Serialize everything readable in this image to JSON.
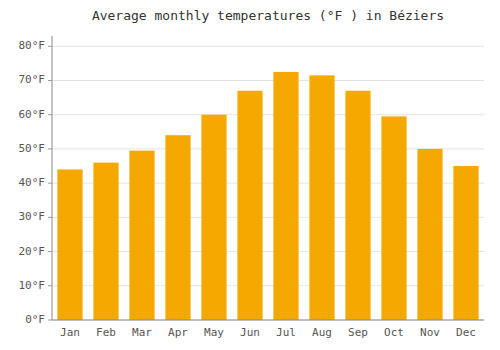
{
  "chart_data": {
    "type": "bar",
    "title": "Average monthly temperatures (°F ) in Béziers",
    "categories": [
      "Jan",
      "Feb",
      "Mar",
      "Apr",
      "May",
      "Jun",
      "Jul",
      "Aug",
      "Sep",
      "Oct",
      "Nov",
      "Dec"
    ],
    "values": [
      44,
      46,
      49.5,
      54,
      60,
      67,
      72.5,
      71.5,
      67,
      59.5,
      50,
      45
    ],
    "color": "#F5A800",
    "ylim": [
      0,
      83
    ],
    "yticks": [
      {
        "value": 0,
        "label": "0°F"
      },
      {
        "value": 10,
        "label": "10°F"
      },
      {
        "value": 20,
        "label": "20°F"
      },
      {
        "value": 30,
        "label": "30°F"
      },
      {
        "value": 40,
        "label": "40°F"
      },
      {
        "value": 50,
        "label": "50°F"
      },
      {
        "value": 60,
        "label": "60°F"
      },
      {
        "value": 70,
        "label": "70°F"
      },
      {
        "value": 80,
        "label": "80°F"
      }
    ],
    "grid": true
  }
}
